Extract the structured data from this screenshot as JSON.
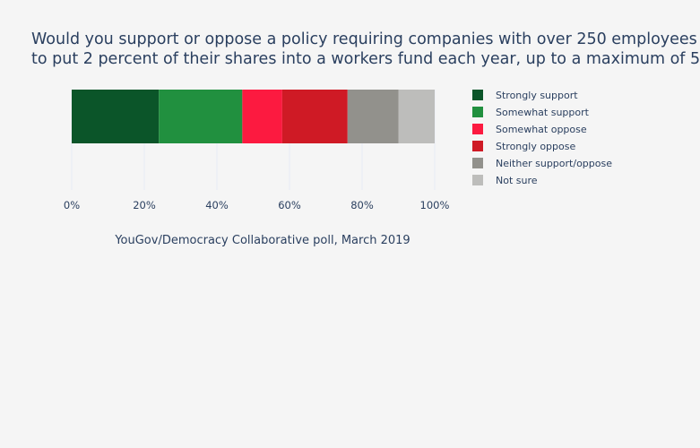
{
  "chart_data": {
    "type": "bar",
    "orientation": "horizontal",
    "stacked": true,
    "title_lines": [
      "Would you support or oppose a policy requiring companies with over 250 employees",
      "to put 2 percent of their shares into a workers fund each year, up to a maximum of 5"
    ],
    "xlabel": "YouGov/Democracy Collaborative poll, March 2019",
    "xlim": [
      0,
      100
    ],
    "x_ticks": [
      "0%",
      "20%",
      "40%",
      "60%",
      "80%",
      "100%"
    ],
    "grid": true,
    "legend_position": "right",
    "series": [
      {
        "name": "Strongly support",
        "value": 24,
        "color": "#0b5529"
      },
      {
        "name": "Somewhat support",
        "value": 23,
        "color": "#21903f"
      },
      {
        "name": "Somewhat oppose",
        "value": 11,
        "color": "#fc1a40"
      },
      {
        "name": "Strongly oppose",
        "value": 18,
        "color": "#cf1a25"
      },
      {
        "name": "Neither support/oppose",
        "value": 14,
        "color": "#92918c"
      },
      {
        "name": "Not sure",
        "value": 10,
        "color": "#bdbdbb"
      }
    ]
  }
}
